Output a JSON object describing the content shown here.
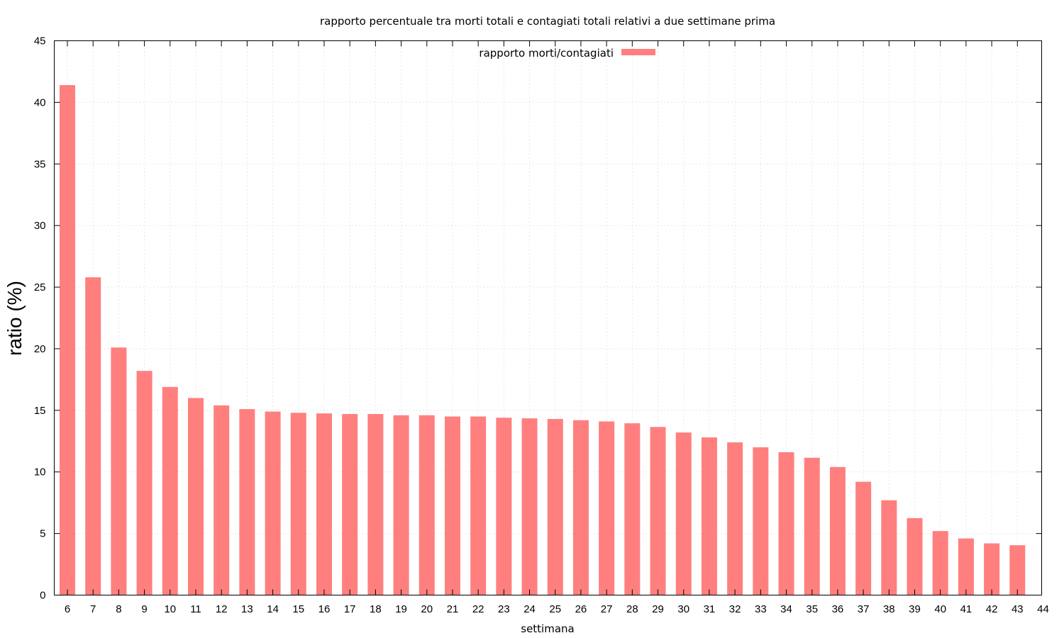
{
  "chart_data": {
    "type": "bar",
    "title": "rapporto percentuale tra morti totali e contagiati totali relativi a due settimane prima",
    "xlabel": "settimana",
    "ylabel": "ratio (%)",
    "ylim": [
      0,
      45
    ],
    "yticks": [
      "0",
      "5",
      "10",
      "15",
      "20",
      "25",
      "30",
      "35",
      "40",
      "45"
    ],
    "xticks": [
      "6",
      "7",
      "8",
      "9",
      "10",
      "11",
      "12",
      "13",
      "14",
      "15",
      "16",
      "17",
      "18",
      "19",
      "20",
      "21",
      "22",
      "23",
      "24",
      "25",
      "26",
      "27",
      "28",
      "29",
      "30",
      "31",
      "32",
      "33",
      "34",
      "35",
      "36",
      "37",
      "38",
      "39",
      "40",
      "41",
      "42",
      "43",
      "44"
    ],
    "grid": true,
    "legend_position": "top-center",
    "series": [
      {
        "name": "rapporto morti/contagiati",
        "color": "#ff7f7f",
        "categories": [
          "6",
          "7",
          "8",
          "9",
          "10",
          "11",
          "12",
          "13",
          "14",
          "15",
          "16",
          "17",
          "18",
          "19",
          "20",
          "21",
          "22",
          "23",
          "24",
          "25",
          "26",
          "27",
          "28",
          "29",
          "30",
          "31",
          "32",
          "33",
          "34",
          "35",
          "36",
          "37",
          "38",
          "39",
          "40",
          "41",
          "42",
          "43"
        ],
        "values": [
          41.4,
          25.8,
          20.1,
          18.2,
          16.9,
          16.0,
          15.4,
          15.1,
          14.9,
          14.8,
          14.75,
          14.7,
          14.7,
          14.6,
          14.6,
          14.5,
          14.5,
          14.4,
          14.35,
          14.3,
          14.2,
          14.1,
          13.95,
          13.65,
          13.2,
          12.8,
          12.4,
          12.0,
          11.6,
          11.15,
          10.4,
          9.2,
          7.7,
          6.25,
          5.2,
          4.6,
          4.2,
          4.05
        ]
      }
    ]
  }
}
